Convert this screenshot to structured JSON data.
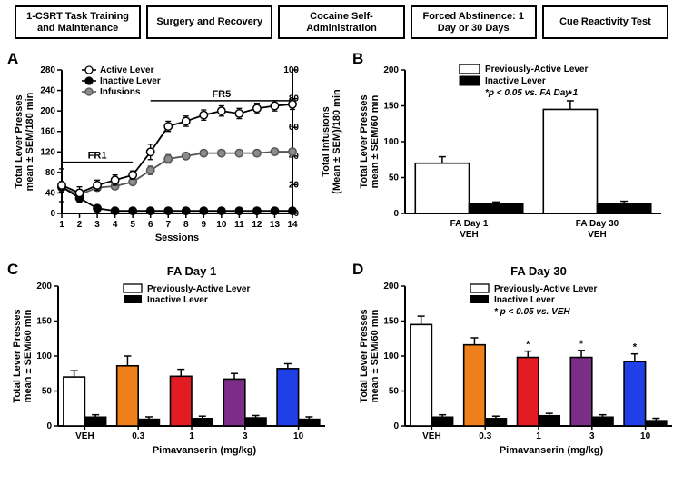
{
  "timeline": [
    "1-CSRT Task Training and Maintenance",
    "Surgery and Recovery",
    "Cocaine Self-Administration",
    "Forced Abstinence: 1 Day or 30 Days",
    "Cue Reactivity Test"
  ],
  "labels": {
    "A": "A",
    "B": "B",
    "C": "C",
    "D": "D"
  },
  "panelA": {
    "type": "line",
    "ylabel_left": "Total Lever Presses\nmean ± SEM/180 min",
    "ylabel_right": "Total Infusions\n(Mean ± SEM)/180 min",
    "xlabel": "Sessions",
    "ylim_left": [
      0,
      280
    ],
    "ytick_step_left": 40,
    "ylim_right": [
      0,
      100
    ],
    "ytick_step_right": 20,
    "xlim": [
      1,
      14
    ],
    "fr1_label": "FR1",
    "fr5_label": "FR5",
    "fr1_range": [
      1,
      5
    ],
    "fr5_range": [
      6,
      14
    ],
    "legend": [
      {
        "name": "Active Lever",
        "marker": "circle-open",
        "color": "#ffffff",
        "stroke": "#000000"
      },
      {
        "name": "Inactive Lever",
        "marker": "circle-filled",
        "color": "#000000",
        "stroke": "#000000"
      },
      {
        "name": "Infusions",
        "marker": "circle-filled",
        "color": "#8b8b8b",
        "stroke": "#555555"
      }
    ],
    "sessions": [
      1,
      2,
      3,
      4,
      5,
      6,
      7,
      8,
      9,
      10,
      11,
      12,
      13,
      14
    ],
    "active": [
      55,
      40,
      55,
      65,
      75,
      120,
      170,
      180,
      192,
      200,
      195,
      205,
      210,
      213
    ],
    "active_err": [
      32,
      12,
      10,
      10,
      8,
      15,
      10,
      10,
      10,
      10,
      10,
      10,
      10,
      10
    ],
    "inactive": [
      52,
      30,
      10,
      5,
      5,
      5,
      5,
      5,
      5,
      5,
      5,
      5,
      5,
      5
    ],
    "inactive_err": [
      10,
      8,
      5,
      4,
      4,
      3,
      3,
      3,
      3,
      3,
      3,
      3,
      3,
      3
    ],
    "infusions": [
      18,
      13,
      18,
      19,
      22,
      30,
      38,
      40,
      42,
      42,
      42,
      42,
      43,
      43
    ],
    "infusions_err": [
      3,
      2,
      2,
      2,
      2,
      3,
      3,
      2,
      2,
      2,
      2,
      2,
      2,
      2
    ],
    "line_width": 1.8,
    "marker_size": 4.2
  },
  "panelB": {
    "type": "bar",
    "ylabel": "Total Lever Presses\nmean ± SEM/60 min",
    "ylim": [
      0,
      200
    ],
    "ytick_step": 50,
    "legend": [
      {
        "name": "Previously-Active Lever",
        "fill": "#ffffff",
        "stroke": "#000000"
      },
      {
        "name": "Inactive Lever",
        "fill": "#000000",
        "stroke": "#000000"
      }
    ],
    "annotation": "*p < 0.05 vs. FA Day 1",
    "groups": [
      {
        "label": "FA Day 1\nVEH",
        "active": 70,
        "active_err": 9,
        "inactive": 13,
        "inactive_err": 3,
        "star": false
      },
      {
        "label": "FA Day 30\nVEH",
        "active": 145,
        "active_err": 12,
        "inactive": 14,
        "inactive_err": 3,
        "star": true
      }
    ],
    "bar_width": 0.42
  },
  "panelC": {
    "type": "bar",
    "title": "FA Day 1",
    "ylabel": "Total Lever Presses\nmean ± SEM/60 min",
    "xlabel": "Pimavanserin  (mg/kg)",
    "ylim": [
      0,
      200
    ],
    "ytick_step": 50,
    "legend": [
      {
        "name": "Previously-Active Lever",
        "fill": "#ffffff"
      },
      {
        "name": "Inactive Lever",
        "fill": "#000000"
      }
    ],
    "doses": [
      "VEH",
      "0.3",
      "1",
      "3",
      "10"
    ],
    "dose_colors": [
      "#ffffff",
      "#ef7f1a",
      "#e31b23",
      "#7c2d87",
      "#1e40e6"
    ],
    "active": [
      70,
      86,
      71,
      67,
      82
    ],
    "active_err": [
      9,
      14,
      10,
      8,
      7
    ],
    "inactive": [
      13,
      10,
      11,
      12,
      10
    ],
    "inactive_err": [
      3,
      3,
      3,
      3,
      3
    ],
    "stars": [
      false,
      false,
      false,
      false,
      false
    ]
  },
  "panelD": {
    "type": "bar",
    "title": "FA Day 30",
    "ylabel": "Total Lever Presses\nmean ± SEM/60 min",
    "xlabel": "Pimavanserin  (mg/kg)",
    "ylim": [
      0,
      200
    ],
    "ytick_step": 50,
    "legend": [
      {
        "name": "Previously-Active Lever",
        "fill": "#ffffff"
      },
      {
        "name": "Inactive Lever",
        "fill": "#000000"
      }
    ],
    "annotation": "*   p < 0.05 vs. VEH",
    "doses": [
      "VEH",
      "0.3",
      "1",
      "3",
      "10"
    ],
    "dose_colors": [
      "#ffffff",
      "#ef7f1a",
      "#e31b23",
      "#7c2d87",
      "#1e40e6"
    ],
    "active": [
      145,
      116,
      98,
      98,
      92
    ],
    "active_err": [
      12,
      10,
      9,
      10,
      11
    ],
    "inactive": [
      13,
      11,
      15,
      13,
      8
    ],
    "inactive_err": [
      3,
      3,
      3,
      3,
      3
    ],
    "stars": [
      false,
      false,
      true,
      true,
      true
    ]
  },
  "colors": {
    "black": "#000000",
    "gray": "#8b8b8b",
    "background": "#ffffff"
  }
}
